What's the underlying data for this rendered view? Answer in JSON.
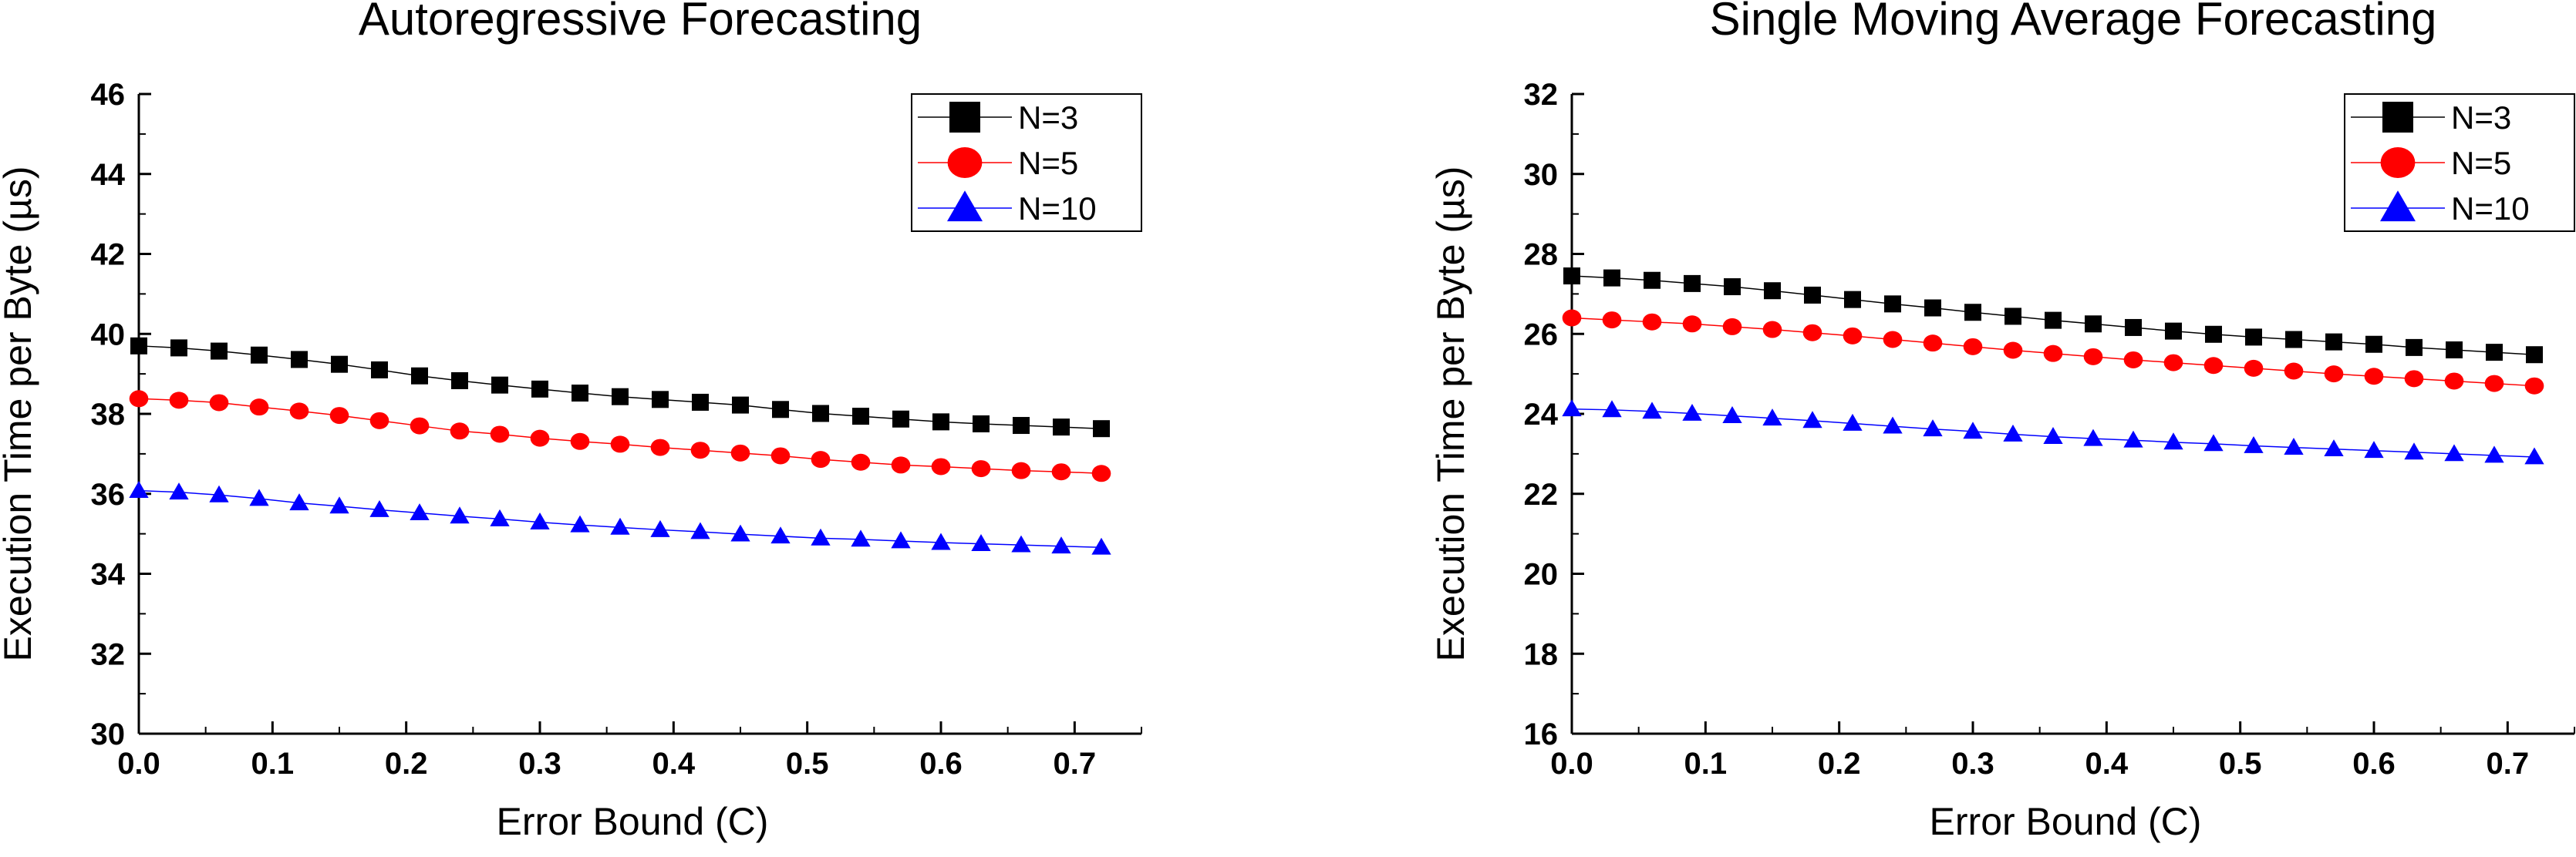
{
  "chart_data": [
    {
      "type": "line",
      "title": "Autoregressive Forecasting",
      "xlabel": "Error Bound (C)",
      "ylabel": "Execution Time per Byte (µs)",
      "xlim": [
        0.0,
        0.75
      ],
      "ylim": [
        30,
        46
      ],
      "xticks": [
        0.0,
        0.1,
        0.2,
        0.3,
        0.4,
        0.5,
        0.6,
        0.7
      ],
      "xtick_labels": [
        "0.0",
        "0.1",
        "0.2",
        "0.3",
        "0.4",
        "0.5",
        "0.6",
        "0.7"
      ],
      "yticks": [
        30,
        32,
        34,
        36,
        38,
        40,
        42,
        44,
        46
      ],
      "ytick_labels": [
        "30",
        "32",
        "34",
        "36",
        "38",
        "40",
        "42",
        "44",
        "46"
      ],
      "legend_position": "top-right",
      "x": [
        0.0,
        0.03,
        0.06,
        0.09,
        0.12,
        0.15,
        0.18,
        0.21,
        0.24,
        0.27,
        0.3,
        0.33,
        0.36,
        0.39,
        0.42,
        0.45,
        0.48,
        0.51,
        0.54,
        0.57,
        0.6,
        0.63,
        0.66,
        0.69,
        0.72
      ],
      "series": [
        {
          "name": "N=3",
          "marker": "square",
          "color": "#000000",
          "values": [
            39.7,
            39.65,
            39.57,
            39.47,
            39.36,
            39.24,
            39.1,
            38.95,
            38.83,
            38.72,
            38.62,
            38.52,
            38.43,
            38.36,
            38.29,
            38.22,
            38.11,
            38.01,
            37.94,
            37.87,
            37.8,
            37.75,
            37.71,
            37.67,
            37.63
          ]
        },
        {
          "name": "N=5",
          "marker": "circle",
          "color": "#ff0000",
          "values": [
            38.38,
            38.34,
            38.28,
            38.17,
            38.07,
            37.96,
            37.83,
            37.7,
            37.57,
            37.49,
            37.39,
            37.31,
            37.24,
            37.16,
            37.09,
            37.02,
            36.95,
            36.86,
            36.79,
            36.72,
            36.68,
            36.63,
            36.58,
            36.55,
            36.51
          ]
        },
        {
          "name": "N=10",
          "marker": "triangle",
          "color": "#0000ff",
          "values": [
            36.08,
            36.04,
            35.97,
            35.88,
            35.77,
            35.69,
            35.6,
            35.52,
            35.44,
            35.37,
            35.29,
            35.22,
            35.16,
            35.1,
            35.05,
            34.99,
            34.94,
            34.89,
            34.86,
            34.82,
            34.78,
            34.75,
            34.72,
            34.69,
            34.66
          ]
        }
      ]
    },
    {
      "type": "line",
      "title": "Single Moving Average Forecasting",
      "xlabel": "Error Bound (C)",
      "ylabel": "Execution Time per Byte (µs)",
      "xlim": [
        0.0,
        0.75
      ],
      "ylim": [
        16,
        32
      ],
      "xticks": [
        0.0,
        0.1,
        0.2,
        0.3,
        0.4,
        0.5,
        0.6,
        0.7
      ],
      "xtick_labels": [
        "0.0",
        "0.1",
        "0.2",
        "0.3",
        "0.4",
        "0.5",
        "0.6",
        "0.7"
      ],
      "yticks": [
        16,
        18,
        20,
        22,
        24,
        26,
        28,
        30,
        32
      ],
      "ytick_labels": [
        "16",
        "18",
        "20",
        "22",
        "24",
        "26",
        "28",
        "30",
        "32"
      ],
      "legend_position": "top-right",
      "x": [
        0.0,
        0.03,
        0.06,
        0.09,
        0.12,
        0.15,
        0.18,
        0.21,
        0.24,
        0.27,
        0.3,
        0.33,
        0.36,
        0.39,
        0.42,
        0.45,
        0.48,
        0.51,
        0.54,
        0.57,
        0.6,
        0.63,
        0.66,
        0.69,
        0.72
      ],
      "series": [
        {
          "name": "N=3",
          "marker": "square",
          "color": "#000000",
          "values": [
            27.45,
            27.4,
            27.34,
            27.26,
            27.18,
            27.08,
            26.97,
            26.86,
            26.75,
            26.65,
            26.54,
            26.44,
            26.34,
            26.25,
            26.16,
            26.07,
            25.99,
            25.92,
            25.86,
            25.8,
            25.74,
            25.66,
            25.6,
            25.54,
            25.48
          ]
        },
        {
          "name": "N=5",
          "marker": "circle",
          "color": "#ff0000",
          "values": [
            26.4,
            26.35,
            26.3,
            26.25,
            26.18,
            26.11,
            26.03,
            25.95,
            25.86,
            25.77,
            25.68,
            25.59,
            25.51,
            25.43,
            25.35,
            25.28,
            25.21,
            25.14,
            25.07,
            25.0,
            24.94,
            24.88,
            24.82,
            24.76,
            24.7
          ]
        },
        {
          "name": "N=10",
          "marker": "triangle",
          "color": "#0000ff",
          "values": [
            24.12,
            24.1,
            24.06,
            24.01,
            23.95,
            23.89,
            23.83,
            23.76,
            23.69,
            23.62,
            23.56,
            23.49,
            23.43,
            23.38,
            23.34,
            23.29,
            23.25,
            23.2,
            23.16,
            23.12,
            23.08,
            23.04,
            23.0,
            22.96,
            22.92
          ]
        }
      ]
    }
  ]
}
